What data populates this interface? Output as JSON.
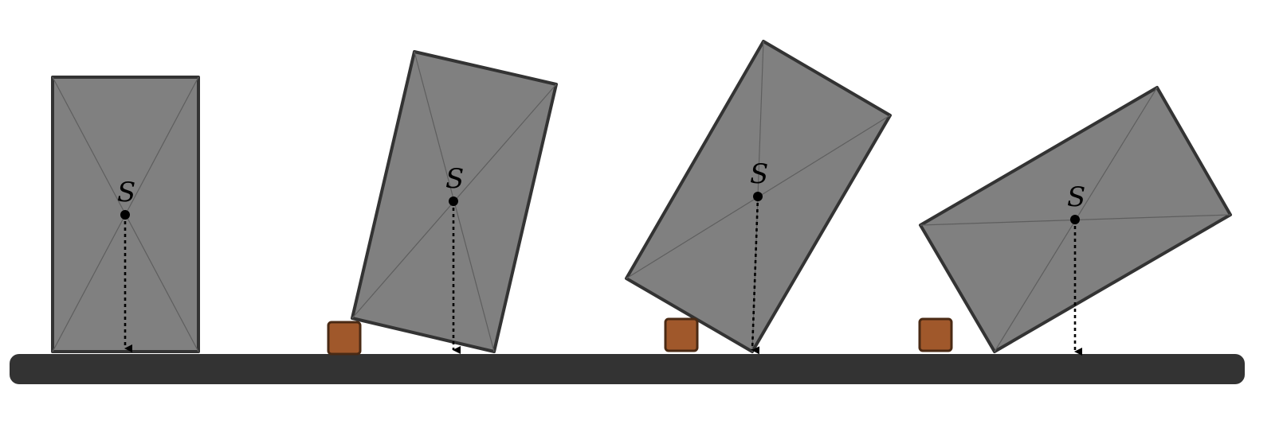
{
  "figure": {
    "center_label": "S",
    "colors": {
      "block_fill": "#808080",
      "block_outline": "#333333",
      "ground": "#333333",
      "obstacle_fill": "#a0582b",
      "obstacle_outline": "#4a2a14",
      "center_point": "#000000"
    },
    "stages": [
      {
        "label": "S",
        "tilt": "upright",
        "obstacle": false
      },
      {
        "label": "S",
        "tilt": "slight",
        "obstacle": true
      },
      {
        "label": "S",
        "tilt": "medium",
        "obstacle": true
      },
      {
        "label": "S",
        "tilt": "large",
        "obstacle": true
      }
    ]
  }
}
